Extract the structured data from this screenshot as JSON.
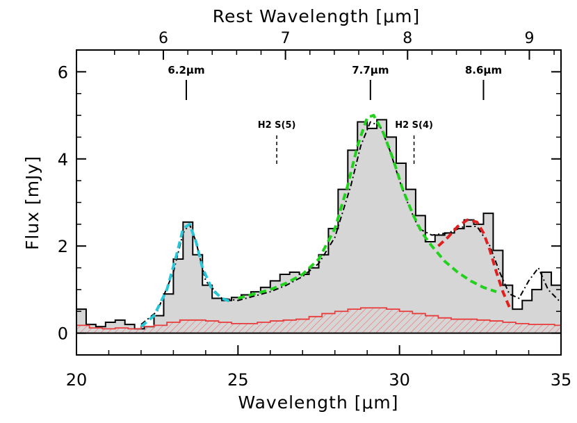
{
  "chart_data": {
    "type": "line",
    "title": "",
    "xlabel": "Wavelength [μm]",
    "ylabel": "Flux [mJy]",
    "top_xlabel": "Rest Wavelength [μm]",
    "xlim": [
      20,
      35
    ],
    "ylim": [
      -0.5,
      6.5
    ],
    "x_ticks": [
      {
        "value": 20,
        "label": "20"
      },
      {
        "value": 25,
        "label": "25"
      },
      {
        "value": 30,
        "label": "30"
      },
      {
        "value": 35,
        "label": "35"
      }
    ],
    "y_ticks": [
      {
        "value": 0,
        "label": "0"
      },
      {
        "value": 2,
        "label": "2"
      },
      {
        "value": 4,
        "label": "4"
      },
      {
        "value": 6,
        "label": "6"
      }
    ],
    "top_ticks": [
      {
        "rest": 6,
        "obs": 22.69,
        "label": "6"
      },
      {
        "rest": 7,
        "obs": 26.47,
        "label": "7"
      },
      {
        "rest": 8,
        "obs": 30.25,
        "label": "8"
      },
      {
        "rest": 9,
        "obs": 34.02,
        "label": "9"
      }
    ],
    "features": [
      {
        "label": "6.2μm",
        "x": 23.4
      },
      {
        "label": "7.7μm",
        "x": 29.1
      },
      {
        "label": "8.6μm",
        "x": 32.6
      }
    ],
    "lines": [
      {
        "label": "H2 S(5)",
        "x": 26.2
      },
      {
        "label": "H2 S(4)",
        "x": 30.45
      }
    ],
    "series": [
      {
        "name": "",
        "style": "histogram-filled",
        "color": "#000000",
        "fill": "#d6d6d6",
        "x": [
          20.0,
          20.3,
          20.6,
          20.9,
          21.2,
          21.5,
          21.8,
          22.1,
          22.4,
          22.7,
          23.0,
          23.3,
          23.6,
          23.9,
          24.2,
          24.5,
          24.8,
          25.1,
          25.4,
          25.7,
          26.0,
          26.3,
          26.6,
          26.9,
          27.2,
          27.5,
          27.8,
          28.1,
          28.4,
          28.7,
          29.0,
          29.3,
          29.6,
          29.9,
          30.2,
          30.5,
          30.8,
          31.1,
          31.4,
          31.7,
          32.0,
          32.3,
          32.6,
          32.9,
          33.2,
          33.5,
          33.8,
          34.1,
          34.4,
          34.7,
          35.0
        ],
        "values": [
          0.55,
          0.2,
          0.15,
          0.25,
          0.3,
          0.2,
          0.1,
          0.15,
          0.4,
          0.9,
          1.7,
          2.55,
          1.8,
          1.1,
          0.8,
          0.75,
          0.82,
          0.88,
          0.95,
          1.05,
          1.2,
          1.35,
          1.4,
          1.35,
          1.5,
          1.8,
          2.4,
          3.3,
          4.2,
          4.85,
          4.7,
          4.9,
          4.5,
          3.9,
          3.3,
          2.7,
          2.1,
          2.25,
          2.3,
          2.4,
          2.6,
          2.5,
          2.75,
          1.9,
          1.1,
          0.55,
          0.75,
          1.0,
          1.4,
          1.1,
          0.9
        ]
      },
      {
        "name": "",
        "style": "histogram-hatched",
        "color": "#e83c3c",
        "x": [
          20.0,
          20.4,
          20.8,
          21.2,
          21.6,
          22.0,
          22.4,
          22.8,
          23.2,
          23.6,
          24.0,
          24.4,
          24.8,
          25.2,
          25.6,
          26.0,
          26.4,
          26.8,
          27.2,
          27.6,
          28.0,
          28.4,
          28.8,
          29.2,
          29.6,
          30.0,
          30.4,
          30.8,
          31.2,
          31.6,
          32.0,
          32.4,
          32.8,
          33.2,
          33.6,
          34.0,
          34.4,
          34.8
        ],
        "values": [
          0.18,
          0.12,
          0.1,
          0.12,
          0.1,
          0.15,
          0.18,
          0.25,
          0.3,
          0.3,
          0.28,
          0.25,
          0.22,
          0.22,
          0.25,
          0.28,
          0.3,
          0.32,
          0.38,
          0.45,
          0.5,
          0.55,
          0.58,
          0.58,
          0.55,
          0.5,
          0.45,
          0.4,
          0.35,
          0.32,
          0.32,
          0.3,
          0.28,
          0.25,
          0.22,
          0.2,
          0.2,
          0.18
        ]
      },
      {
        "name": "",
        "style": "dash-dot",
        "color": "#000000",
        "x": [
          22.0,
          22.5,
          23.0,
          23.3,
          23.5,
          23.7,
          24.0,
          24.5,
          25.0,
          25.5,
          26.0,
          26.5,
          27.0,
          27.5,
          28.0,
          28.5,
          28.8,
          29.1,
          29.4,
          29.7,
          30.0,
          30.3,
          30.6,
          31.0,
          31.5,
          32.0,
          32.4,
          32.8,
          33.1,
          33.4,
          33.7,
          34.0,
          34.3,
          34.6,
          35.0
        ],
        "values": [
          0.2,
          0.5,
          1.4,
          2.3,
          2.5,
          2.1,
          1.2,
          0.8,
          0.75,
          0.85,
          0.95,
          1.1,
          1.3,
          1.6,
          2.2,
          3.4,
          4.3,
          4.85,
          4.75,
          4.2,
          3.5,
          2.9,
          2.4,
          2.25,
          2.3,
          2.45,
          2.45,
          2.0,
          1.4,
          0.9,
          0.8,
          1.2,
          1.5,
          1.0,
          0.7
        ]
      },
      {
        "name": "",
        "style": "dashed",
        "color": "#29c6d8",
        "x": [
          22.0,
          22.4,
          22.8,
          23.1,
          23.3,
          23.5,
          23.7,
          23.9,
          24.2,
          24.5,
          24.8
        ],
        "values": [
          0.15,
          0.4,
          1.0,
          1.8,
          2.4,
          2.5,
          2.1,
          1.5,
          1.0,
          0.8,
          0.72
        ]
      },
      {
        "name": "",
        "style": "dashed",
        "color": "#22d11e",
        "x": [
          25.0,
          25.5,
          26.0,
          26.5,
          27.0,
          27.5,
          28.0,
          28.4,
          28.7,
          29.0,
          29.2,
          29.5,
          29.8,
          30.1,
          30.4,
          30.7,
          31.0,
          31.4,
          31.8,
          32.2,
          32.6,
          33.0
        ],
        "values": [
          0.8,
          0.9,
          1.0,
          1.15,
          1.35,
          1.7,
          2.4,
          3.4,
          4.3,
          4.95,
          5.0,
          4.6,
          4.0,
          3.3,
          2.75,
          2.3,
          2.0,
          1.65,
          1.4,
          1.2,
          1.05,
          0.95
        ]
      },
      {
        "name": "",
        "style": "dashed",
        "color": "#e02020",
        "x": [
          31.2,
          31.5,
          31.8,
          32.1,
          32.4,
          32.6,
          32.8,
          33.0,
          33.2,
          33.4
        ],
        "values": [
          2.0,
          2.2,
          2.45,
          2.6,
          2.55,
          2.3,
          1.9,
          1.4,
          0.95,
          0.6
        ]
      }
    ]
  }
}
